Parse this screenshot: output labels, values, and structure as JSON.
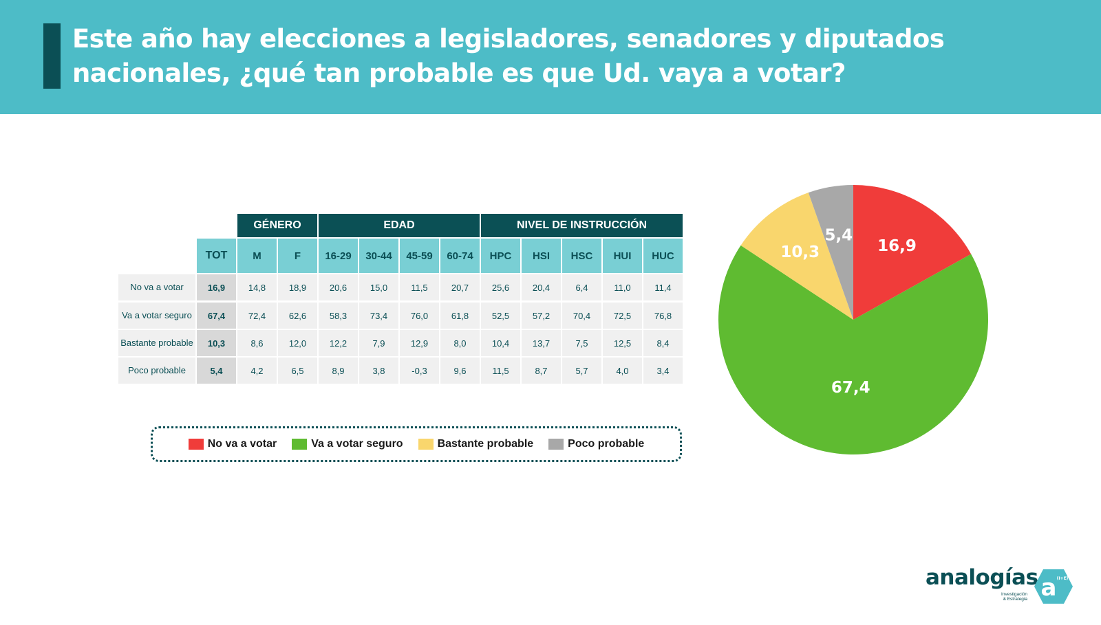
{
  "header": {
    "title": "Este año hay elecciones a legisladores, senadores y diputados nacionales, ¿qué tan probable es que Ud. vaya a votar?"
  },
  "table": {
    "groups": [
      {
        "label": "GÉNERO"
      },
      {
        "label": "EDAD"
      },
      {
        "label": "NIVEL DE INSTRUCCIÓN"
      }
    ],
    "columns": [
      "TOT",
      "M",
      "F",
      "16-29",
      "30-44",
      "45-59",
      "60-74",
      "HPC",
      "HSI",
      "HSC",
      "HUI",
      "HUC"
    ],
    "rows": [
      {
        "label": "No va a votar",
        "values": [
          "16,9",
          "14,8",
          "18,9",
          "20,6",
          "15,0",
          "11,5",
          "20,7",
          "25,6",
          "20,4",
          "6,4",
          "11,0",
          "11,4"
        ]
      },
      {
        "label": "Va a votar seguro",
        "values": [
          "67,4",
          "72,4",
          "62,6",
          "58,3",
          "73,4",
          "76,0",
          "61,8",
          "52,5",
          "57,2",
          "70,4",
          "72,5",
          "76,8"
        ]
      },
      {
        "label": "Bastante probable",
        "values": [
          "10,3",
          "8,6",
          "12,0",
          "12,2",
          "7,9",
          "12,9",
          "8,0",
          "10,4",
          "13,7",
          "7,5",
          "12,5",
          "8,4"
        ]
      },
      {
        "label": "Poco probable",
        "values": [
          "5,4",
          "4,2",
          "6,5",
          "8,9",
          "3,8",
          "-0,3",
          "9,6",
          "11,5",
          "8,7",
          "5,7",
          "4,0",
          "3,4"
        ]
      }
    ]
  },
  "legend": [
    {
      "label": "No va a votar",
      "color": "#f03c3a"
    },
    {
      "label": "Va a votar seguro",
      "color": "#5fbb31"
    },
    {
      "label": "Bastante probable",
      "color": "#f9d66d"
    },
    {
      "label": "Poco probable",
      "color": "#a8a8a8"
    }
  ],
  "chart_data": {
    "type": "pie",
    "title": "",
    "slices": [
      {
        "label": "No va a votar",
        "value": 16.9,
        "display": "16,9",
        "color": "#f03c3a"
      },
      {
        "label": "Va a votar seguro",
        "value": 67.4,
        "display": "67,4",
        "color": "#5fbb31"
      },
      {
        "label": "Bastante probable",
        "value": 10.3,
        "display": "10,3",
        "color": "#f9d66d"
      },
      {
        "label": "Poco probable",
        "value": 5.4,
        "display": "5,4",
        "color": "#a8a8a8"
      }
    ]
  },
  "logo": {
    "word": "analogías",
    "tagline_1": "Investigación",
    "tagline_2": "& Estrategia",
    "mark": "a",
    "mark_sup": "(I+E)"
  }
}
